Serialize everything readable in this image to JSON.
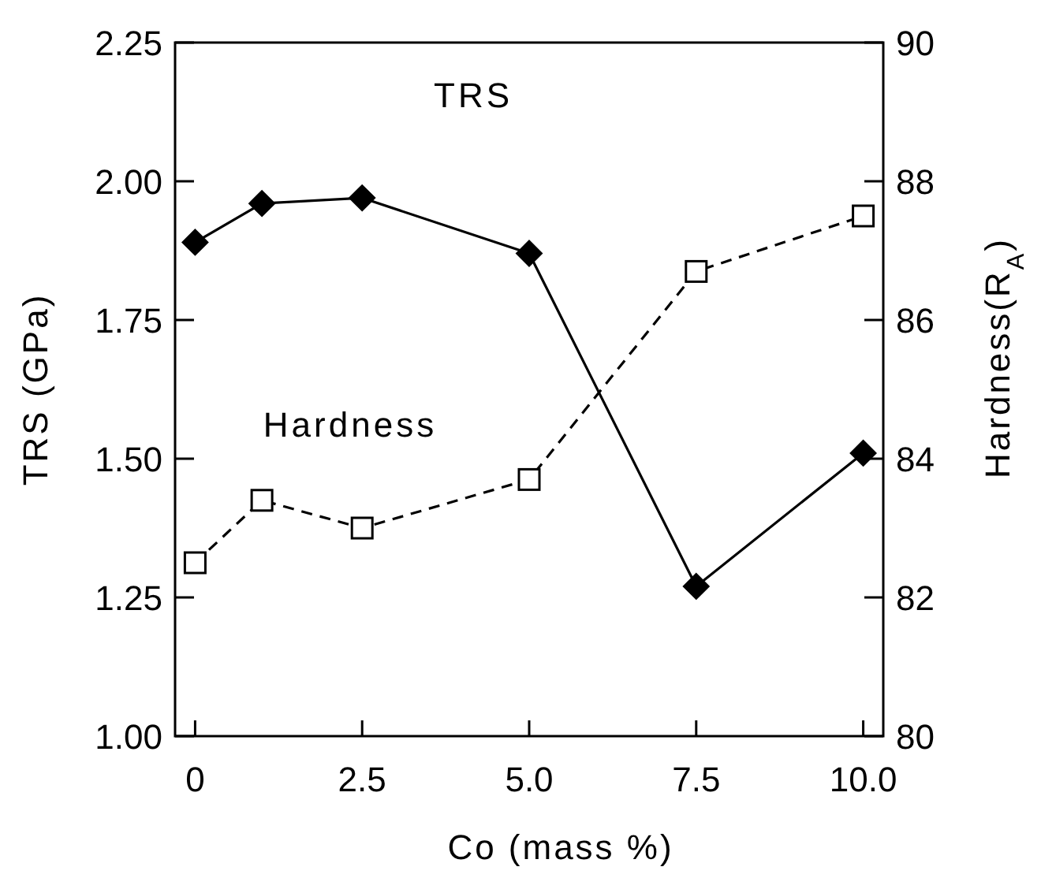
{
  "chart_data": {
    "type": "line",
    "xlabel": "Co (mass %)",
    "ylabel": "TRS (GPa)",
    "y2label": "Hardness(R$_{A}$)",
    "x": [
      0,
      1,
      2.5,
      5,
      7.5,
      10
    ],
    "xlim": [
      -0.3,
      10.3
    ],
    "xticks": [
      {
        "value": 0,
        "label": "0"
      },
      {
        "value": 2.5,
        "label": "2.5"
      },
      {
        "value": 5,
        "label": "5.0"
      },
      {
        "value": 7.5,
        "label": "7.5"
      },
      {
        "value": 10,
        "label": "10.0"
      }
    ],
    "ylim": [
      1,
      2.25
    ],
    "yticks": [
      {
        "value": 1,
        "label": "1.00"
      },
      {
        "value": 1.25,
        "label": "1.25"
      },
      {
        "value": 1.5,
        "label": "1.50"
      },
      {
        "value": 1.75,
        "label": "1.75"
      },
      {
        "value": 2,
        "label": "2.00"
      },
      {
        "value": 2.25,
        "label": "2.25"
      }
    ],
    "y2lim": [
      80,
      90
    ],
    "y2ticks": [
      80,
      82,
      84,
      86,
      88,
      90
    ],
    "grid": false,
    "series": [
      {
        "name": "TRS",
        "color": "#000000",
        "values": [
          1.89,
          1.96,
          1.97,
          1.87,
          1.27,
          1.51
        ],
        "marker": "diamond",
        "line_style": "solid"
      },
      {
        "name": "Hardness",
        "color": "#000000",
        "values": [
          82.5,
          83.4,
          83.0,
          83.7,
          86.7,
          87.5
        ],
        "axis": "y2",
        "marker": "square",
        "line_style": "dashed"
      }
    ]
  }
}
